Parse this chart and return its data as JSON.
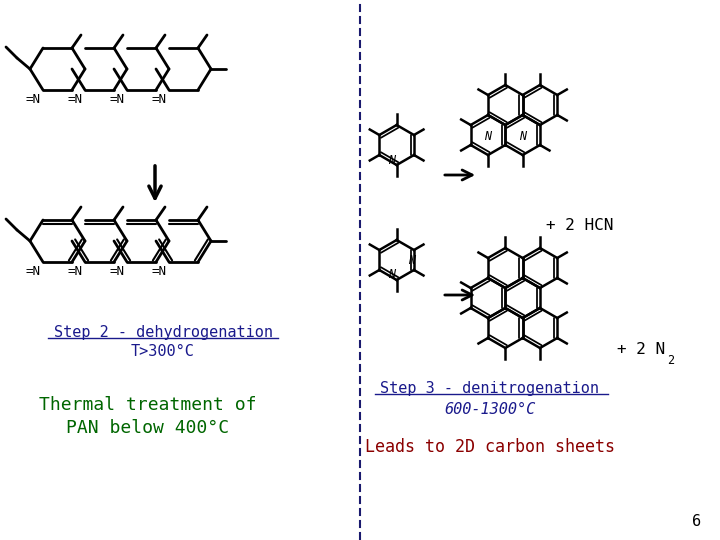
{
  "bg_color": "#ffffff",
  "divider_color": "#1a1a6e",
  "step2_title": "Step 2 - dehydrogenation",
  "step2_temp": "T>300°C",
  "step2_color": "#1a1a8c",
  "thermal_line1": "Thermal treatment of",
  "thermal_line2": "PAN below 400°C",
  "thermal_color": "#006600",
  "hcn_text": "+ 2 HCN",
  "step3_title": "Step 3 - denitrogenation",
  "step3_temp": "600-1300°C",
  "step3_color": "#1a1a8c",
  "leads_text": "Leads to 2D carbon sheets",
  "leads_color": "#8b0000",
  "page_num": "6"
}
